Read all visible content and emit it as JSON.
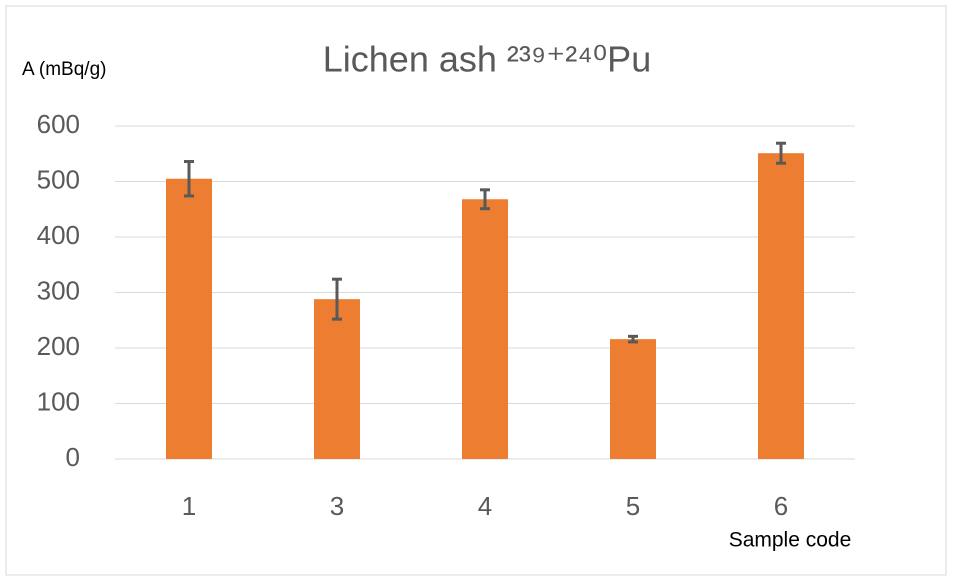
{
  "chart_data": {
    "type": "bar",
    "title": "Lichen ash ²³⁹⁺²⁴⁰Pu",
    "y_label": "A (mBq/g)",
    "x_label": "Sample code",
    "categories": [
      "1",
      "3",
      "4",
      "5",
      "6"
    ],
    "values": [
      505,
      288,
      468,
      216,
      551
    ],
    "errors": [
      31,
      36,
      17,
      5,
      18
    ],
    "color": "#ed7d31",
    "error_color": "#595959",
    "ylim": [
      0,
      600
    ],
    "yticks": [
      0,
      100,
      200,
      300,
      400,
      500,
      600
    ],
    "grid": true
  }
}
